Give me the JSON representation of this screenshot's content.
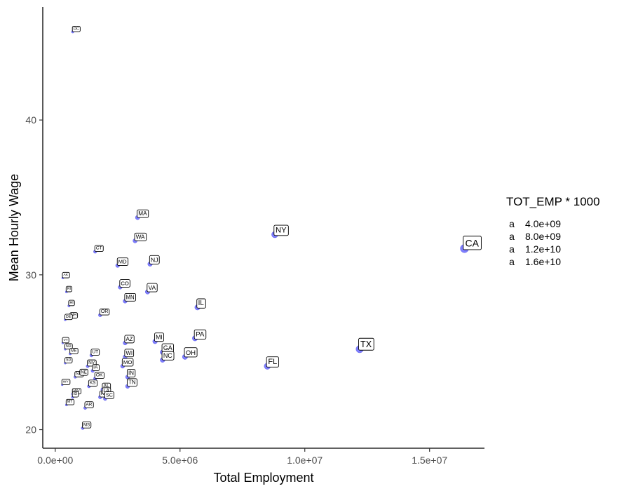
{
  "chart_data": {
    "type": "scatter",
    "title": "",
    "xlabel": "Total Employment",
    "ylabel": "Mean Hourly Wage",
    "xlim": [
      -500000,
      17200000
    ],
    "ylim": [
      18.8,
      47.3
    ],
    "x_ticks": [
      {
        "value": 0,
        "label": "0.0e+00"
      },
      {
        "value": 5000000,
        "label": "5.0e+06"
      },
      {
        "value": 10000000,
        "label": "1.0e+07"
      },
      {
        "value": 15000000,
        "label": "1.5e+07"
      }
    ],
    "y_ticks": [
      {
        "value": 20,
        "label": "20"
      },
      {
        "value": 30,
        "label": "30"
      },
      {
        "value": 40,
        "label": "40"
      }
    ],
    "grid": false,
    "point_color": "#7777ff",
    "legend": {
      "position": "right",
      "title": "TOT_EMP * 1000",
      "glyph": "a",
      "entries": [
        "4.0e+09",
        "8.0e+09",
        "1.2e+10",
        "1.6e+10"
      ]
    },
    "points": [
      {
        "label": "DC",
        "x": 700000,
        "y": 45.7
      },
      {
        "label": "MA",
        "x": 3300000,
        "y": 33.7
      },
      {
        "label": "WA",
        "x": 3200000,
        "y": 32.2
      },
      {
        "label": "NY",
        "x": 8800000,
        "y": 32.6
      },
      {
        "label": "CA",
        "x": 16400000,
        "y": 31.7
      },
      {
        "label": "CT",
        "x": 1600000,
        "y": 31.5
      },
      {
        "label": "NJ",
        "x": 3800000,
        "y": 30.7
      },
      {
        "label": "MD",
        "x": 2500000,
        "y": 30.6
      },
      {
        "label": "CO",
        "x": 2600000,
        "y": 29.2
      },
      {
        "label": "MN",
        "x": 2800000,
        "y": 28.3
      },
      {
        "label": "VA",
        "x": 3700000,
        "y": 28.9
      },
      {
        "label": "IL",
        "x": 5700000,
        "y": 27.9
      },
      {
        "label": "AK",
        "x": 300000,
        "y": 29.8
      },
      {
        "label": "RI",
        "x": 450000,
        "y": 28.9
      },
      {
        "label": "HI",
        "x": 550000,
        "y": 28.0
      },
      {
        "label": "NH",
        "x": 600000,
        "y": 27.2
      },
      {
        "label": "OR",
        "x": 1800000,
        "y": 27.4
      },
      {
        "label": "DE",
        "x": 400000,
        "y": 27.1
      },
      {
        "label": "PA",
        "x": 5600000,
        "y": 25.9
      },
      {
        "label": "AZ",
        "x": 2800000,
        "y": 25.6
      },
      {
        "label": "MI",
        "x": 4000000,
        "y": 25.7
      },
      {
        "label": "VT",
        "x": 300000,
        "y": 25.6
      },
      {
        "label": "GA",
        "x": 4300000,
        "y": 25.0
      },
      {
        "label": "WI",
        "x": 2800000,
        "y": 24.7
      },
      {
        "label": "UT",
        "x": 1450000,
        "y": 24.8
      },
      {
        "label": "ND",
        "x": 400000,
        "y": 25.2
      },
      {
        "label": "ME",
        "x": 600000,
        "y": 24.9
      },
      {
        "label": "NV",
        "x": 1300000,
        "y": 24.1
      },
      {
        "label": "MO",
        "x": 2700000,
        "y": 24.1
      },
      {
        "label": "FL",
        "x": 8500000,
        "y": 24.1
      },
      {
        "label": "TX",
        "x": 12200000,
        "y": 25.2
      },
      {
        "label": "OH",
        "x": 5200000,
        "y": 24.7
      },
      {
        "label": "NC",
        "x": 4300000,
        "y": 24.5
      },
      {
        "label": "IA",
        "x": 1500000,
        "y": 23.8
      },
      {
        "label": "IN",
        "x": 2900000,
        "y": 23.4
      },
      {
        "label": "SD",
        "x": 400000,
        "y": 24.3
      },
      {
        "label": "NM",
        "x": 800000,
        "y": 23.4
      },
      {
        "label": "NE",
        "x": 1000000,
        "y": 23.5
      },
      {
        "label": "OK",
        "x": 1600000,
        "y": 23.3
      },
      {
        "label": "KS",
        "x": 1350000,
        "y": 22.8
      },
      {
        "label": "AL",
        "x": 1900000,
        "y": 22.6
      },
      {
        "label": "TN",
        "x": 2900000,
        "y": 22.8
      },
      {
        "label": "WY",
        "x": 280000,
        "y": 22.9
      },
      {
        "label": "WV",
        "x": 700000,
        "y": 22.3
      },
      {
        "label": "ID",
        "x": 700000,
        "y": 22.1
      },
      {
        "label": "KY",
        "x": 1800000,
        "y": 22.1
      },
      {
        "label": "LA",
        "x": 1900000,
        "y": 22.3
      },
      {
        "label": "SC",
        "x": 2000000,
        "y": 22.0
      },
      {
        "label": "MT",
        "x": 450000,
        "y": 21.6
      },
      {
        "label": "AR",
        "x": 1200000,
        "y": 21.4
      },
      {
        "label": "MS",
        "x": 1100000,
        "y": 20.1
      }
    ]
  }
}
